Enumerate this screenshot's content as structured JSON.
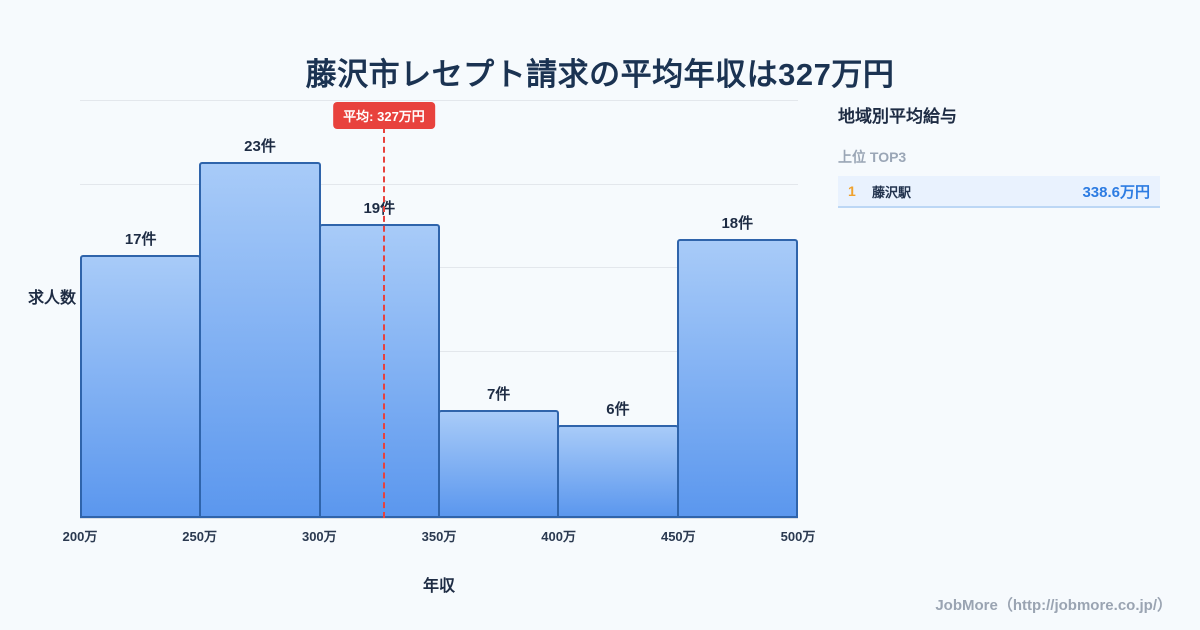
{
  "page": {
    "title": "藤沢市レセプト請求の平均年収は327万円",
    "footer": "JobMore（http://jobmore.co.jp/）"
  },
  "chart_data": {
    "type": "bar",
    "title": "藤沢市レセプト請求の平均年収は327万円",
    "xlabel": "年収",
    "ylabel": "求人数",
    "categories": [
      "200万-250万",
      "250万-300万",
      "300万-350万",
      "350万-400万",
      "400万-450万",
      "450万-500万"
    ],
    "values": [
      17,
      23,
      19,
      7,
      6,
      18
    ],
    "value_labels": [
      "17件",
      "23件",
      "19件",
      "7件",
      "6件",
      "18件"
    ],
    "bin_edge_labels": [
      "200万",
      "250万",
      "300万",
      "350万",
      "400万",
      "450万",
      "500万"
    ],
    "x_range": [
      200,
      500
    ],
    "ylim": [
      0,
      27
    ],
    "grid": true,
    "legend": "none",
    "average_line": {
      "value": 327,
      "label": "平均: 327万円",
      "color": "#e8423d"
    }
  },
  "sidebar": {
    "heading": "地域別平均給与",
    "subheading": "上位 TOP3",
    "rows": [
      {
        "rank": "1",
        "name": "藤沢駅",
        "value": "338.6万円"
      }
    ]
  },
  "colors": {
    "background": "#f6fafd",
    "bar_top": "#a8cbf8",
    "bar_bottom": "#5b97ee",
    "bar_border": "#2f64ab",
    "accent_red": "#e8423d",
    "value_blue": "#2d7ce2",
    "rank_orange": "#f0a22e"
  }
}
